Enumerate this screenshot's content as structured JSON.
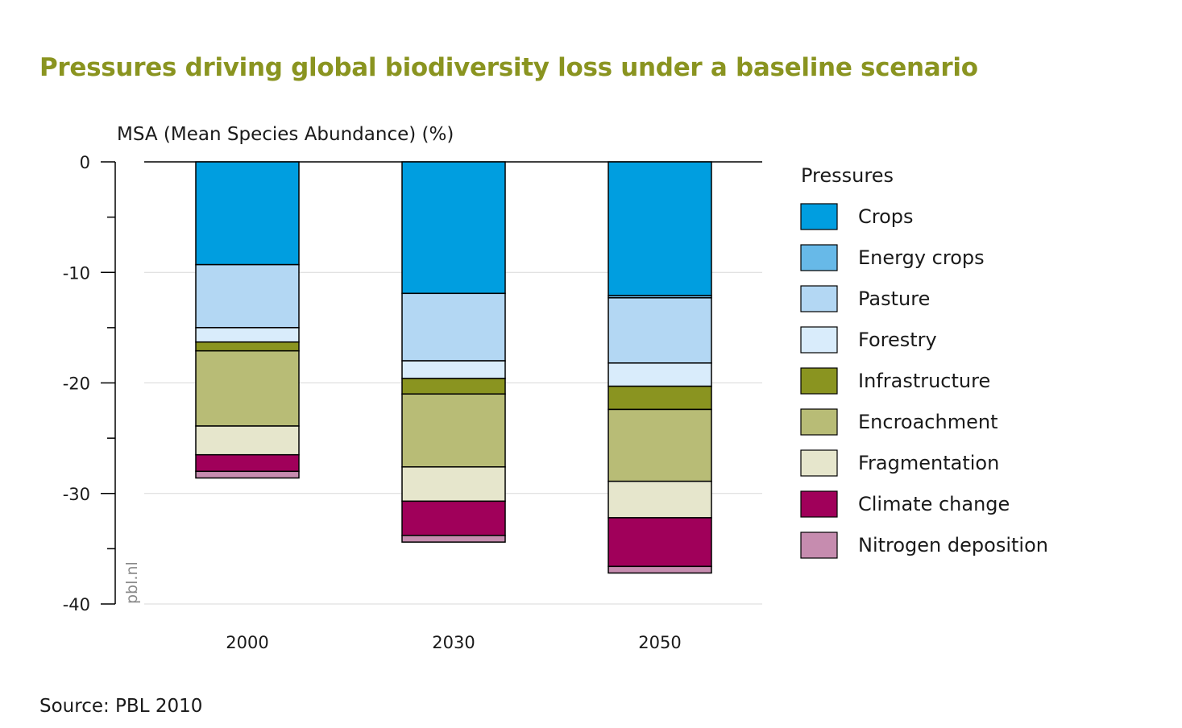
{
  "chart_data": {
    "type": "bar",
    "stacked": true,
    "title": "Pressures driving global biodiversity loss under a baseline scenario",
    "ylabel": "MSA (Mean Species Abundance) (%)",
    "xlabel": "",
    "ylim": [
      -40,
      0
    ],
    "yticks": [
      0,
      -10,
      -20,
      -30,
      -40
    ],
    "grid": true,
    "legend_title": "Pressures",
    "legend_position": "right",
    "categories": [
      "2000",
      "2030",
      "2050"
    ],
    "series": [
      {
        "name": "Crops",
        "color": "#009ee0",
        "values": [
          -9.3,
          -11.9,
          -12.1
        ]
      },
      {
        "name": "Energy crops",
        "color": "#67b9e8",
        "values": [
          0,
          0,
          -0.2
        ]
      },
      {
        "name": "Pasture",
        "color": "#b3d7f3",
        "values": [
          -5.7,
          -6.1,
          -5.9
        ]
      },
      {
        "name": "Forestry",
        "color": "#d9ecfb",
        "values": [
          -1.3,
          -1.6,
          -2.1
        ]
      },
      {
        "name": "Infrastructure",
        "color": "#8a9420",
        "values": [
          -0.8,
          -1.4,
          -2.1
        ]
      },
      {
        "name": "Encroachment",
        "color": "#b8bc76",
        "values": [
          -6.8,
          -6.6,
          -6.5
        ]
      },
      {
        "name": "Fragmentation",
        "color": "#e6e6cc",
        "values": [
          -2.6,
          -3.1,
          -3.3
        ]
      },
      {
        "name": "Climate change",
        "color": "#a0005a",
        "values": [
          -1.5,
          -3.1,
          -4.4
        ]
      },
      {
        "name": "Nitrogen deposition",
        "color": "#c68caf",
        "values": [
          -0.6,
          -0.6,
          -0.6
        ]
      }
    ]
  },
  "watermark": "pbl.nl",
  "source": "Source: PBL 2010"
}
